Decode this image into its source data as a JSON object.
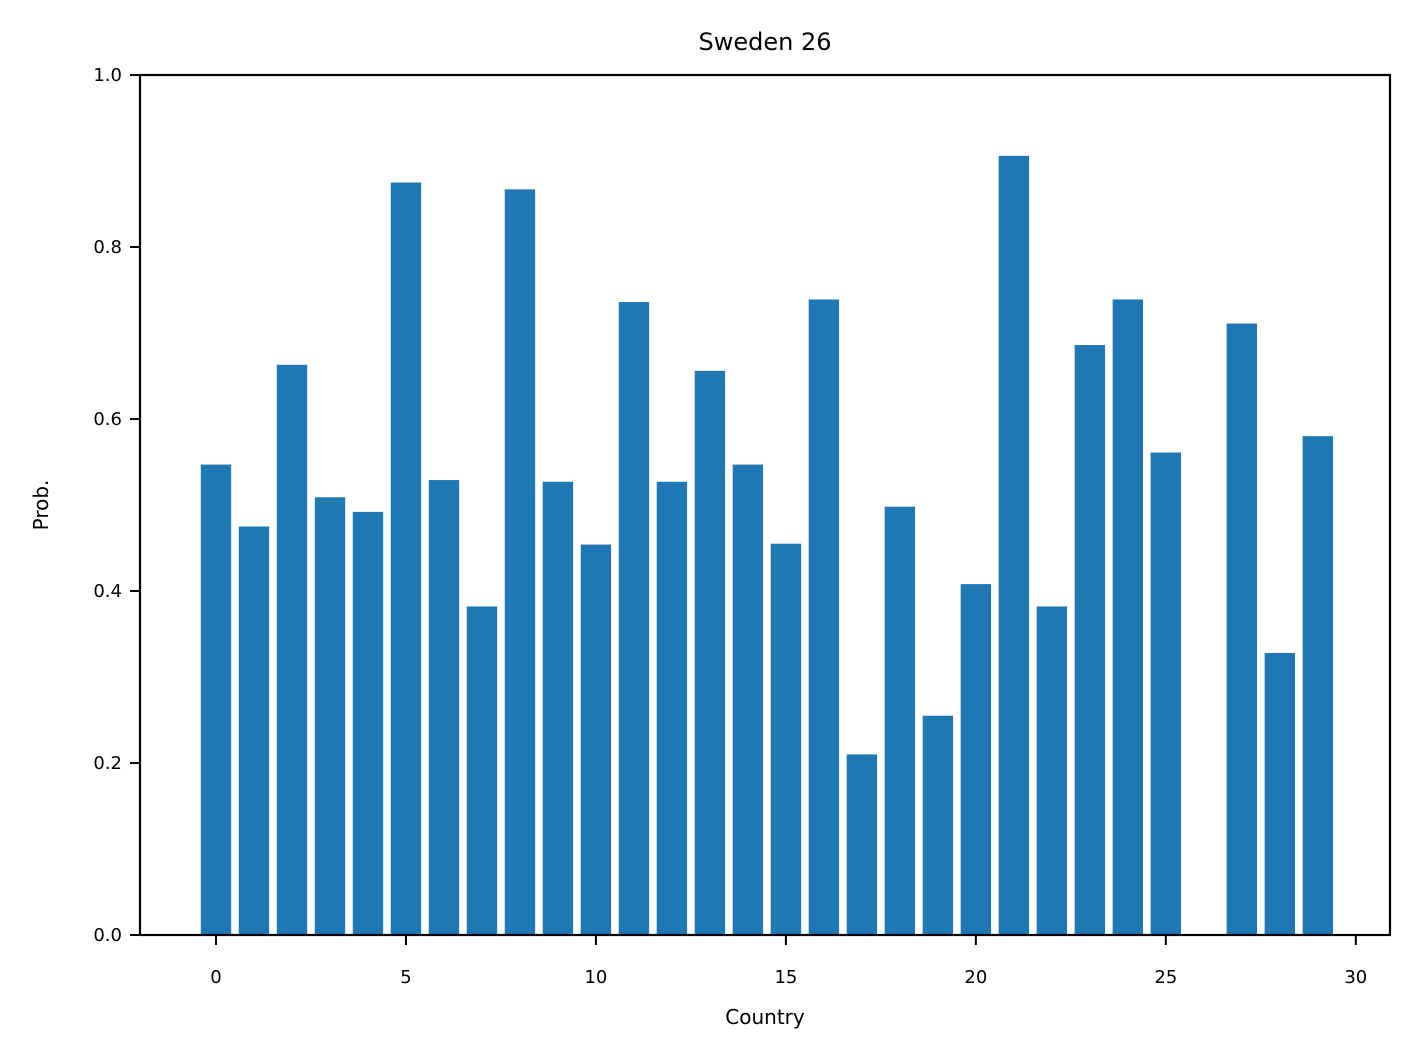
{
  "chart_data": {
    "type": "bar",
    "title": "Sweden 26",
    "xlabel": "Country",
    "ylabel": "Prob.",
    "x": [
      0,
      1,
      2,
      3,
      4,
      5,
      6,
      7,
      8,
      9,
      10,
      11,
      12,
      13,
      14,
      15,
      16,
      17,
      18,
      19,
      20,
      21,
      22,
      23,
      24,
      25,
      26,
      27,
      28,
      29
    ],
    "values": [
      0.547,
      0.475,
      0.663,
      0.509,
      0.492,
      0.875,
      0.529,
      0.382,
      0.867,
      0.527,
      0.454,
      0.736,
      0.527,
      0.656,
      0.547,
      0.455,
      0.739,
      0.21,
      0.498,
      0.255,
      0.408,
      0.906,
      0.382,
      0.686,
      0.739,
      0.561,
      0.0,
      0.711,
      0.328,
      0.58
    ],
    "xlim": [
      -2.0,
      30.9
    ],
    "ylim": [
      0,
      1.0
    ],
    "xticks": [
      "0",
      "5",
      "10",
      "15",
      "20",
      "25",
      "30"
    ],
    "yticks": [
      "0.0",
      "0.2",
      "0.4",
      "0.6",
      "0.8",
      "1.0"
    ],
    "bar_color": "#1f77b4",
    "grid": false,
    "legend": "none"
  }
}
